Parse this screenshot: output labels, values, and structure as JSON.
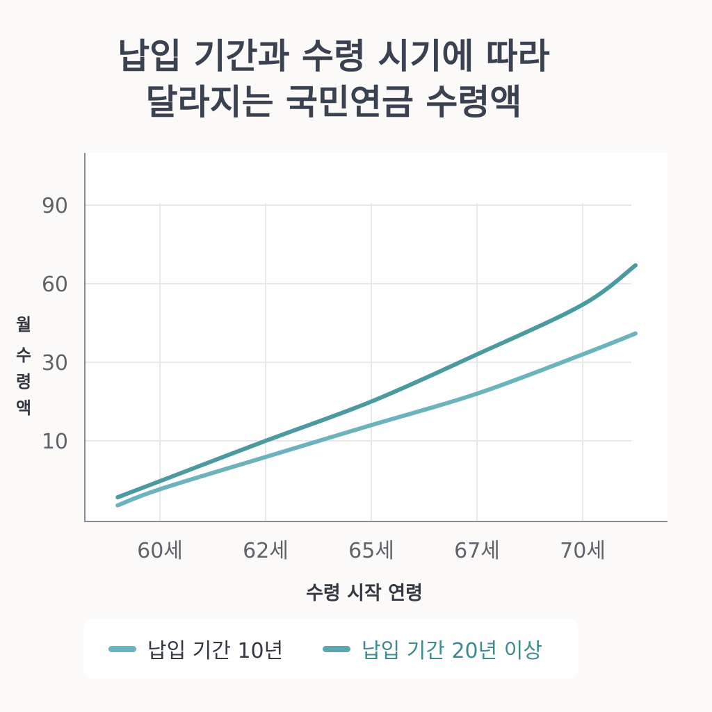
{
  "chart_data": {
    "type": "line",
    "title_lines": [
      "납입 기간과 수령 시기에 따라",
      "달라지는 국민연금 수령액"
    ],
    "xlabel": "수령 시작 연령",
    "ylabel": "월 수령액",
    "categories": [
      "60세",
      "62세",
      "65세",
      "67세",
      "70세"
    ],
    "y_ticks": [
      10,
      30,
      60,
      90
    ],
    "grid": true,
    "legend_position": "bottom",
    "series": [
      {
        "name": "납입 기간 10년",
        "color": "#6bb3bd",
        "points": [
          [
            -0.4,
            2
          ],
          [
            0,
            4
          ],
          [
            1,
            8
          ],
          [
            2,
            14
          ],
          [
            3,
            22
          ],
          [
            4,
            33
          ],
          [
            4.5,
            41
          ]
        ]
      },
      {
        "name": "납입 기간 20년 이상",
        "color": "#4a9a9f",
        "points": [
          [
            -0.4,
            3
          ],
          [
            0,
            5
          ],
          [
            1,
            10
          ],
          [
            2,
            20
          ],
          [
            3,
            33
          ],
          [
            4,
            52
          ],
          [
            4.5,
            67
          ]
        ]
      }
    ]
  },
  "legend": {
    "item1_color": "#6bb3bd",
    "item2_color": "#5aa7ad",
    "item2_text_color": "#3d8a91"
  }
}
